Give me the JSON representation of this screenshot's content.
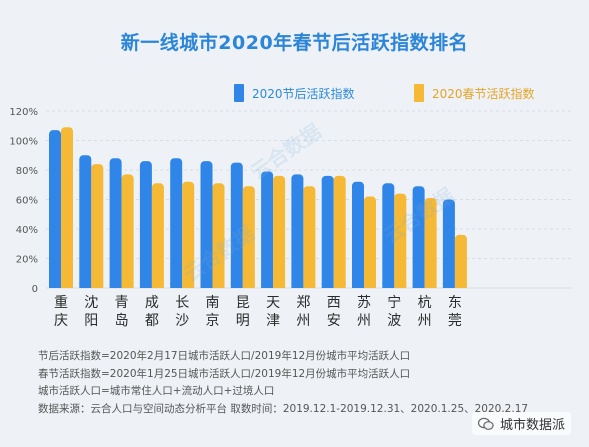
{
  "title": "新一线城市2020年春节后活跃指数排名",
  "legend": {
    "after": "2020节后活跃指数",
    "spring": "2020春节活跃指数"
  },
  "colors": {
    "after": "#2f86e8",
    "spring": "#f5b935",
    "title": "#2b85d8"
  },
  "chart_data": {
    "type": "bar",
    "categories": [
      "重庆",
      "沈阳",
      "青岛",
      "成都",
      "长沙",
      "南京",
      "昆明",
      "天津",
      "郑州",
      "西安",
      "苏州",
      "宁波",
      "杭州",
      "东莞"
    ],
    "category_lines": [
      [
        "重",
        "庆"
      ],
      [
        "沈",
        "阳"
      ],
      [
        "青",
        "岛"
      ],
      [
        "成",
        "都"
      ],
      [
        "长",
        "沙"
      ],
      [
        "南",
        "京"
      ],
      [
        "昆",
        "明"
      ],
      [
        "天",
        "津"
      ],
      [
        "郑",
        "州"
      ],
      [
        "西",
        "安"
      ],
      [
        "苏",
        "州"
      ],
      [
        "宁",
        "波"
      ],
      [
        "杭",
        "州"
      ],
      [
        "东",
        "莞"
      ]
    ],
    "series": [
      {
        "name": "2020节后活跃指数",
        "values": [
          107,
          90,
          88,
          86,
          88,
          86,
          85,
          79,
          77,
          76,
          72,
          71,
          69,
          60
        ]
      },
      {
        "name": "2020春节活跃指数",
        "values": [
          109,
          84,
          77,
          71,
          72,
          71,
          69,
          76,
          69,
          76,
          62,
          64,
          61,
          36
        ]
      }
    ],
    "ylim": [
      0,
      120
    ],
    "yticks": [
      "0",
      "20%",
      "40%",
      "60%",
      "80%",
      "100%",
      "120%"
    ],
    "grid": true,
    "legend_position": "top-right"
  },
  "notes": [
    "节后活跃指数=2020年2月17日城市活跃人口/2019年12月份城市平均活跃人口",
    "春节活跃指数=2020年1月25日城市活跃人口/2019年12月份城市平均活跃人口",
    "城市活跃人口=城市常住人口+流动人口+过境人口",
    "数据来源：云合人口与空间动态分析平台 取数时间：2019.12.1-2019.12.31、2020.1.25、2020.2.17"
  ],
  "watermark": "云合数据",
  "footer_badge": "城市数据派"
}
